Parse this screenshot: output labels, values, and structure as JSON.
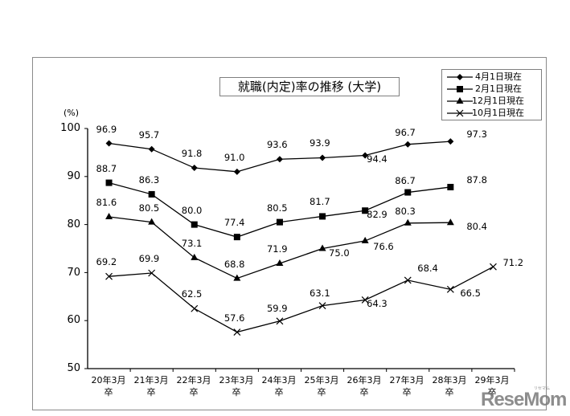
{
  "chart_data": {
    "type": "line",
    "title": "就職(内定)率の推移 (大学)",
    "xlabel": "",
    "ylabel": "(%)",
    "ylim": [
      50,
      100
    ],
    "yticks": [
      50,
      60,
      70,
      80,
      90,
      100
    ],
    "grid": false,
    "legend_position": "top-right",
    "categories": [
      "20年3月卒",
      "21年3月卒",
      "22年3月卒",
      "23年3月卒",
      "24年3月卒",
      "25年3月卒",
      "26年3月卒",
      "27年3月卒",
      "28年3月卒",
      "29年3月卒"
    ],
    "series": [
      {
        "name": "4月1日現在",
        "marker": "diamond",
        "values": [
          96.9,
          95.7,
          91.8,
          91.0,
          93.6,
          93.9,
          94.4,
          96.7,
          97.3,
          null
        ]
      },
      {
        "name": "2月1日現在",
        "marker": "square",
        "values": [
          88.7,
          86.3,
          80.0,
          77.4,
          80.5,
          81.7,
          82.9,
          86.7,
          87.8,
          null
        ]
      },
      {
        "name": "12月1日現在",
        "marker": "triangle",
        "values": [
          81.6,
          80.5,
          73.1,
          68.8,
          71.9,
          75.0,
          76.6,
          80.3,
          80.4,
          null
        ]
      },
      {
        "name": "10月1日現在",
        "marker": "x",
        "values": [
          69.2,
          69.9,
          62.5,
          57.6,
          59.9,
          63.1,
          64.3,
          68.4,
          66.5,
          71.2
        ]
      }
    ]
  },
  "chart": {
    "title": "就職(内定)率の推移 (大学)",
    "y_unit": "(%)",
    "y_ticks": [
      "100",
      "90",
      "80",
      "70",
      "60",
      "50"
    ],
    "x_ticks": [
      {
        "line1": "20年3月",
        "line2": "卒"
      },
      {
        "line1": "21年3月",
        "line2": "卒"
      },
      {
        "line1": "22年3月",
        "line2": "卒"
      },
      {
        "line1": "23年3月",
        "line2": "卒"
      },
      {
        "line1": "24年3月",
        "line2": "卒"
      },
      {
        "line1": "25年3月",
        "line2": "卒"
      },
      {
        "line1": "26年3月",
        "line2": "卒"
      },
      {
        "line1": "27年3月",
        "line2": "卒"
      },
      {
        "line1": "28年3月",
        "line2": "卒"
      },
      {
        "line1": "29年3月",
        "line2": "卒"
      }
    ],
    "legend": [
      "4月1日現在",
      "2月1日現在",
      "12月1日現在",
      "10月1日現在"
    ],
    "line_color": "#000000",
    "frame_color": "#8a8a8a"
  },
  "watermark": {
    "text": "ReseMom",
    "sub": "リセマム"
  }
}
